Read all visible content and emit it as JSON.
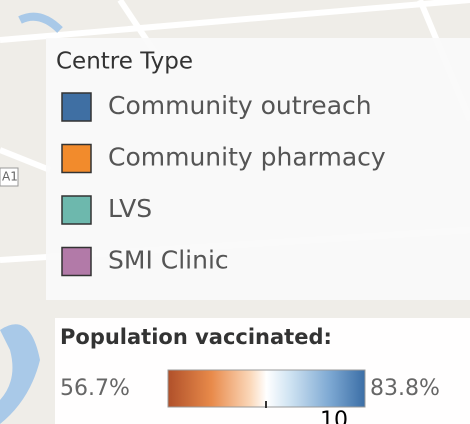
{
  "legend": {
    "title": "Centre Type",
    "items": [
      {
        "label": "Community outreach",
        "color": "#3f6fa3"
      },
      {
        "label": "Community pharmacy",
        "color": "#f28b2c"
      },
      {
        "label": "LVS",
        "color": "#6db8ad"
      },
      {
        "label": "SMI Clinic",
        "color": "#b27aa8"
      }
    ]
  },
  "colorbar": {
    "title": "Population vaccinated:",
    "min_label": "56.7%",
    "max_label": "83.8%",
    "footer": "10"
  },
  "map": {
    "road_label": "A1"
  }
}
